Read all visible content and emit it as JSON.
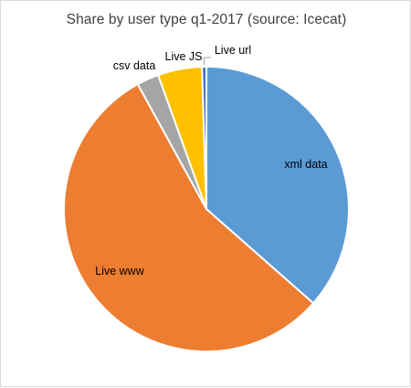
{
  "chart_data": {
    "type": "pie",
    "title": "Share by user type q1-2017 (source: Icecat)",
    "slices": [
      {
        "label": "xml data",
        "value": 36.5,
        "color": "#5B9BD5"
      },
      {
        "label": "Live www",
        "value": 55.5,
        "color": "#ED7D31"
      },
      {
        "label": "csv data",
        "value": 2.5,
        "color": "#A5A5A5"
      },
      {
        "label": "Live JS",
        "value": 5.0,
        "color": "#FFC000"
      },
      {
        "label": "Live url",
        "value": 0.5,
        "color": "#4472C4"
      }
    ],
    "start_angle_deg": 0,
    "direction": "clockwise",
    "legend": "none",
    "data_labels": "category names"
  }
}
